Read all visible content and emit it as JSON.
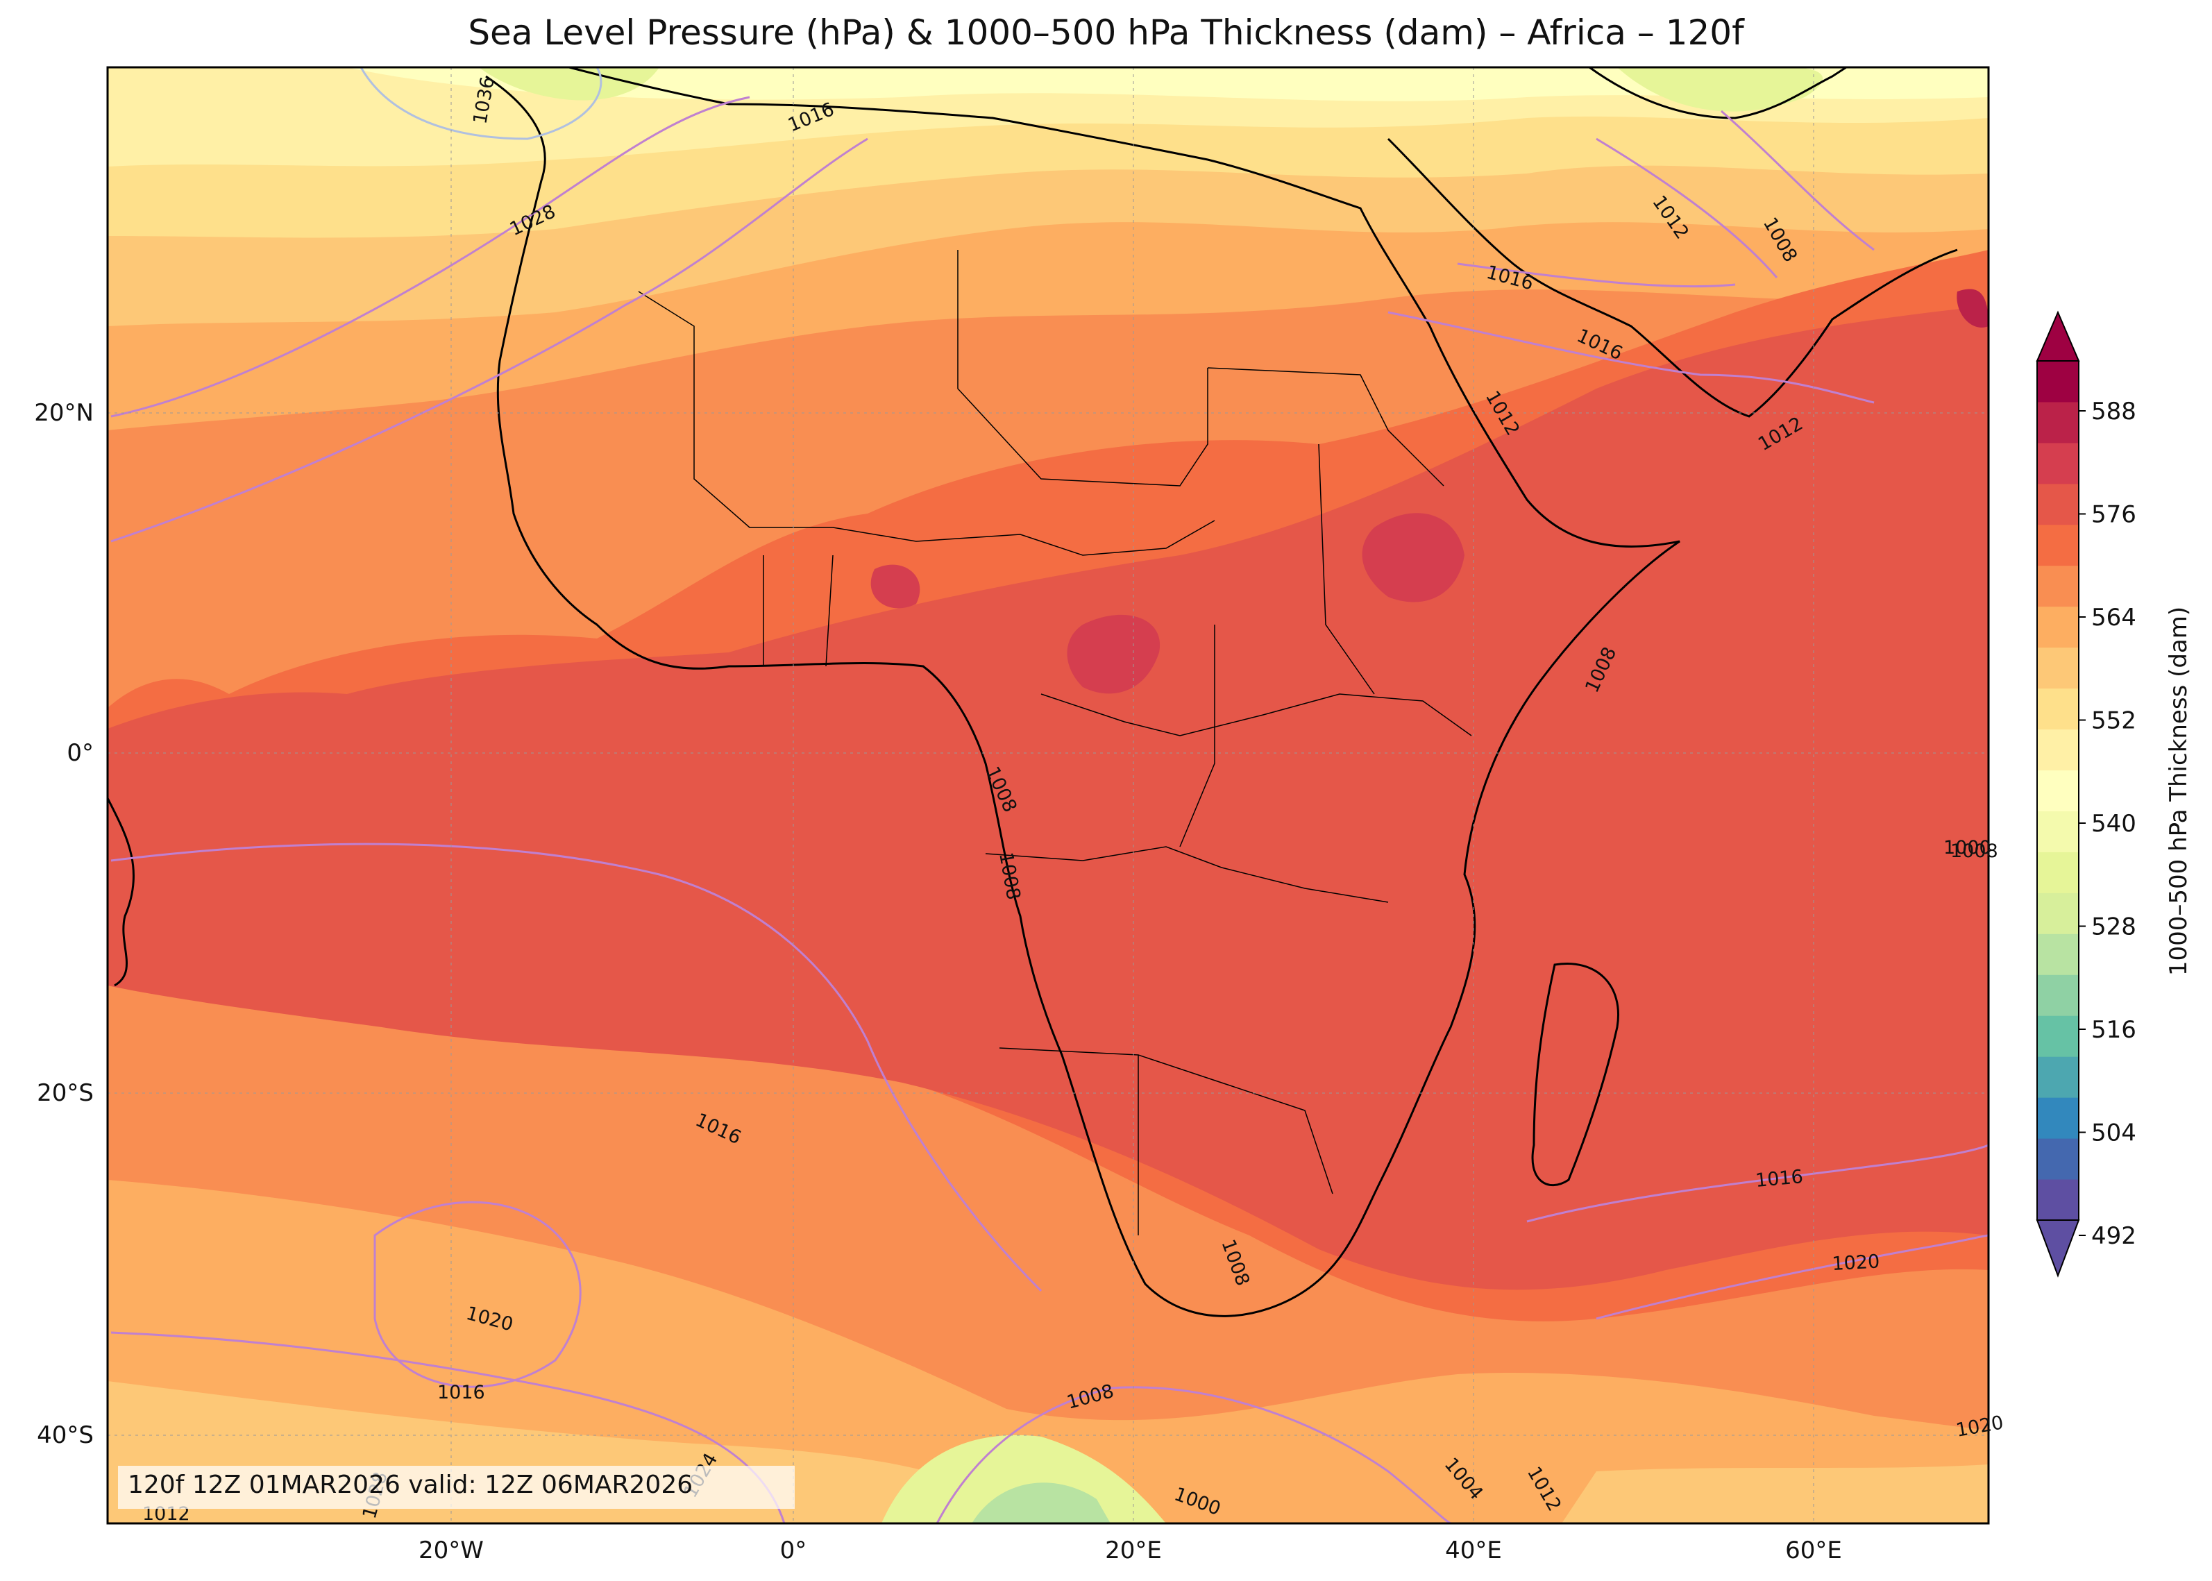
{
  "title": "Sea Level Pressure (hPa) & 1000–500 hPa Thickness (dam) – Africa – 120f",
  "valid_text": "120f 12Z 01MAR2026 valid: 12Z 06MAR2026",
  "lon_ticks": [
    "20°W",
    "0°",
    "20°E",
    "40°E",
    "60°E"
  ],
  "lat_ticks": [
    "20°N",
    "0°",
    "20°S",
    "40°S"
  ],
  "colorbar": {
    "label": "1000–500 hPa Thickness (dam)",
    "ticks": [
      "588",
      "576",
      "564",
      "552",
      "540",
      "528",
      "516",
      "504",
      "492"
    ],
    "colors": [
      "#5e4fa2",
      "#4468af",
      "#3288bd",
      "#4da7b0",
      "#66c2a5",
      "#8fd1a4",
      "#b8e3a2",
      "#d7ef9b",
      "#e6f598",
      "#f4faad",
      "#ffffbf",
      "#fff0a6",
      "#fee08b",
      "#fdc877",
      "#fdae61",
      "#f98e52",
      "#f46d43",
      "#e55749",
      "#d53e4f",
      "#bb2249",
      "#9e0142"
    ]
  },
  "contour_labels": {
    "slp": [
      "1036",
      "1016",
      "1028",
      "1012",
      "1008",
      "1016",
      "1016",
      "1012",
      "1012",
      "1008",
      "1008",
      "1008",
      "1008",
      "1008",
      "1016",
      "1020",
      "1016",
      "1016",
      "1020",
      "1008",
      "1000",
      "1004",
      "1012",
      "1024",
      "1028",
      "1012",
      "1000",
      "1020"
    ]
  }
}
